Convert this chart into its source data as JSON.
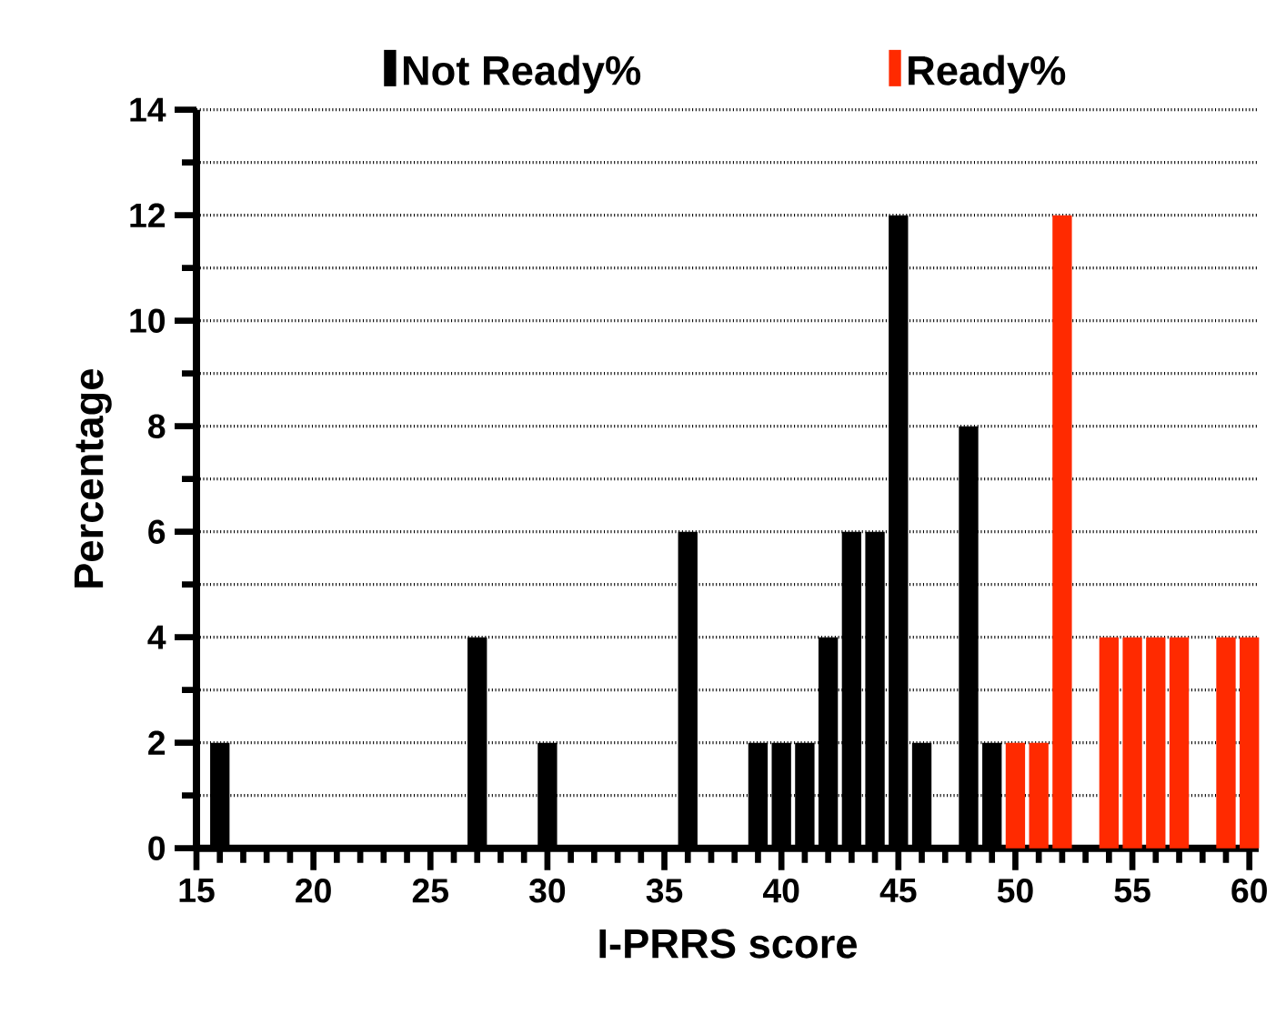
{
  "chart_data": {
    "type": "bar",
    "xlabel": "I-PRRS score",
    "ylabel": "Percentage",
    "series": [
      {
        "name": "Not Ready%",
        "color": "#000000",
        "x": [
          16,
          27,
          30,
          36,
          39,
          40,
          41,
          42,
          43,
          44,
          45,
          46,
          48,
          49
        ],
        "values": [
          2,
          4,
          2,
          6,
          2,
          2,
          2,
          4,
          6,
          6,
          12,
          2,
          8,
          2
        ]
      },
      {
        "name": "Ready%",
        "color": "#ff2a00",
        "x": [
          50,
          51,
          52,
          54,
          55,
          56,
          57,
          59,
          60
        ],
        "values": [
          2,
          2,
          12,
          4,
          4,
          4,
          4,
          4,
          4
        ]
      }
    ],
    "xlim": [
      15,
      60.4
    ],
    "ylim": [
      0,
      14
    ],
    "xticks": [
      15,
      20,
      25,
      30,
      35,
      40,
      45,
      50,
      55,
      60
    ],
    "yticks": [
      0,
      2,
      4,
      6,
      8,
      10,
      12,
      14
    ],
    "grid": "y",
    "legend": "top"
  }
}
